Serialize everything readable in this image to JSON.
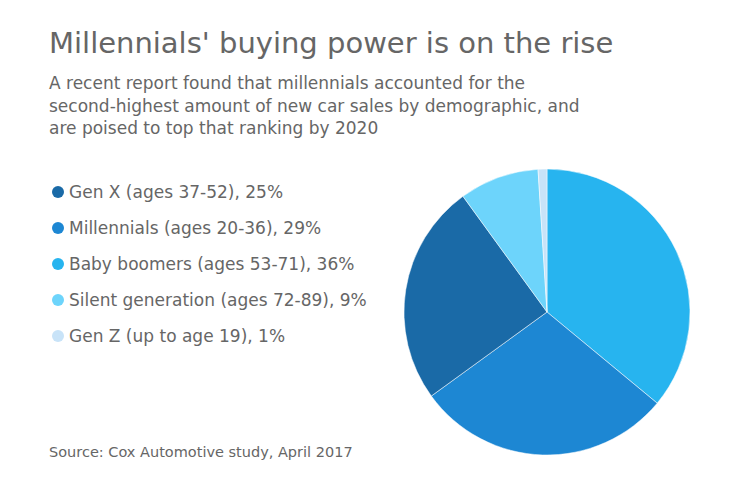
{
  "chart_data": {
    "type": "pie",
    "title": "Millennials' buying power is on the rise",
    "subtitle": [
      "A recent report found that millennials accounted for the",
      "second-highest amount of new car sales by demographic, and",
      "are poised to top that ranking by 2020"
    ],
    "categories": [
      "Gen X (ages 37-52), 25%",
      "Millennials (ages 20-36), 29%",
      "Baby boomers (ages 53-71), 36%",
      "Silent generation (ages 72-89), 9%",
      "Gen Z (up to age 19), 1%"
    ],
    "values": [
      25,
      29,
      36,
      9,
      1
    ],
    "colors": [
      "#1a6aa7",
      "#1d87d3",
      "#27b4ef",
      "#6dd4fb",
      "#c8e3f8"
    ],
    "legend": "left",
    "source": "Source: Cox Automotive study, April 2017"
  }
}
